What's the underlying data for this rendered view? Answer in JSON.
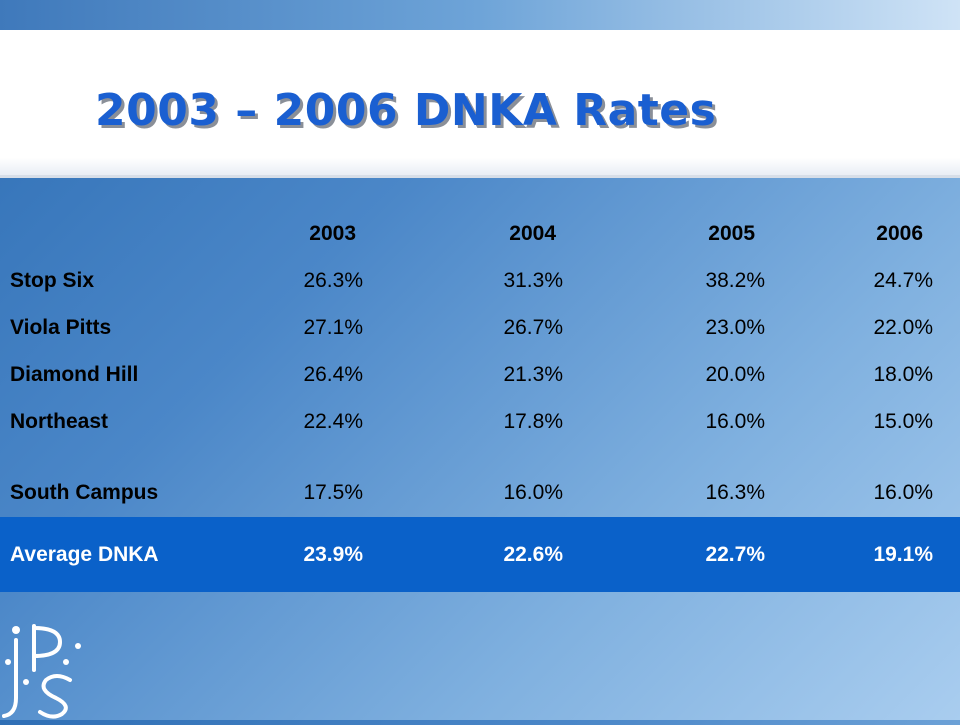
{
  "slide": {
    "title": "2003 – 2006 DNKA Rates"
  },
  "table": {
    "columns": [
      "2003",
      "2004",
      "2005",
      "2006"
    ],
    "rows": [
      {
        "label": "Stop Six",
        "values": [
          "26.3%",
          "31.3%",
          "38.2%",
          "24.7%"
        ]
      },
      {
        "label": "Viola Pitts",
        "values": [
          "27.1%",
          "26.7%",
          "23.0%",
          "22.0%"
        ]
      },
      {
        "label": "Diamond Hill",
        "values": [
          "26.4%",
          "21.3%",
          "20.0%",
          "18.0%"
        ]
      },
      {
        "label": "Northeast",
        "values": [
          "22.4%",
          "17.8%",
          "16.0%",
          "15.0%"
        ]
      },
      {
        "label": "South Campus",
        "values": [
          "17.5%",
          "16.0%",
          "16.3%",
          "16.0%"
        ]
      }
    ],
    "average": {
      "label": "Average DNKA",
      "values": [
        "23.9%",
        "22.6%",
        "22.7%",
        "19.1%"
      ]
    }
  },
  "colors": {
    "title": "#1a5fd1",
    "average_band": "#0a61c9",
    "logo": "#ffffff"
  },
  "logo": {
    "text": "JPS",
    "icon": "jps-logo-icon"
  }
}
